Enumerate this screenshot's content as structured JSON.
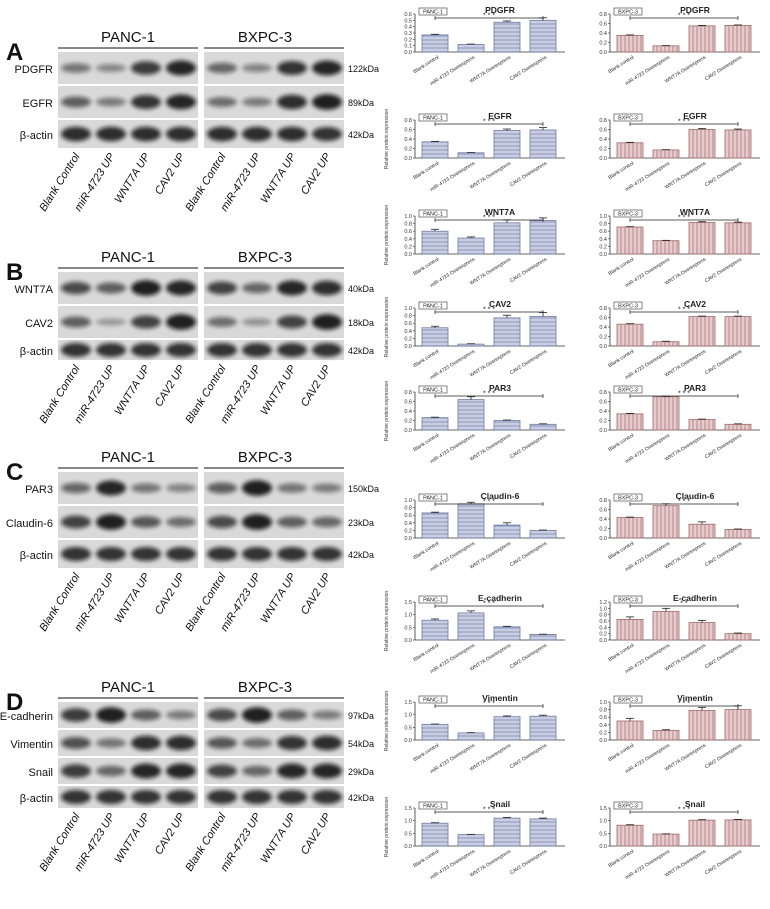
{
  "figure": {
    "panels": [
      {
        "letter": "A",
        "cell_lines": [
          "PANC-1",
          "BXPC-3"
        ],
        "rows": [
          {
            "protein": "PDGFR",
            "size": "122kDa",
            "panc1": [
              0.35,
              0.22,
              0.75,
              0.9
            ],
            "bxpc3": [
              0.45,
              0.25,
              0.8,
              0.9
            ]
          },
          {
            "protein": "EGFR",
            "size": "89kDa",
            "panc1": [
              0.5,
              0.3,
              0.8,
              0.9
            ],
            "bxpc3": [
              0.4,
              0.3,
              0.85,
              0.95
            ]
          },
          {
            "protein": "β-actin",
            "size": "42kDa",
            "panc1": [
              0.85,
              0.85,
              0.85,
              0.85
            ],
            "bxpc3": [
              0.85,
              0.85,
              0.85,
              0.8
            ]
          }
        ],
        "lanes": [
          "Blank Control",
          "miR-4723 UP",
          "WNT7A UP",
          "CAV2 UP"
        ]
      },
      {
        "letter": "B",
        "cell_lines": [
          "PANC-1",
          "BXPC-3"
        ],
        "rows": [
          {
            "protein": "WNT7A",
            "size": "40kDa",
            "panc1": [
              0.65,
              0.5,
              0.95,
              0.9
            ],
            "bxpc3": [
              0.7,
              0.45,
              0.9,
              0.85
            ]
          },
          {
            "protein": "CAV2",
            "size": "18kDa",
            "panc1": [
              0.5,
              0.1,
              0.7,
              0.95
            ],
            "bxpc3": [
              0.4,
              0.15,
              0.7,
              0.95
            ]
          },
          {
            "protein": "β-actin",
            "size": "42kDa",
            "panc1": [
              0.8,
              0.8,
              0.8,
              0.8
            ],
            "bxpc3": [
              0.8,
              0.8,
              0.8,
              0.8
            ]
          }
        ],
        "lanes": [
          "Blank Control",
          "miR-4723 UP",
          "WNT7A UP",
          "CAV2 UP"
        ]
      },
      {
        "letter": "C",
        "cell_lines": [
          "PANC-1",
          "BXPC-3"
        ],
        "rows": [
          {
            "protein": "PAR3",
            "size": "150kDa",
            "panc1": [
              0.45,
              0.9,
              0.35,
              0.25
            ],
            "bxpc3": [
              0.5,
              0.95,
              0.35,
              0.3
            ]
          },
          {
            "protein": "Claudin-6",
            "size": "23kDa",
            "panc1": [
              0.7,
              0.95,
              0.55,
              0.4
            ],
            "bxpc3": [
              0.65,
              0.95,
              0.5,
              0.45
            ]
          },
          {
            "protein": "β-actin",
            "size": "42kDa",
            "panc1": [
              0.8,
              0.8,
              0.8,
              0.8
            ],
            "bxpc3": [
              0.8,
              0.8,
              0.8,
              0.8
            ]
          }
        ],
        "lanes": [
          "Blank Control",
          "miR-4723 UP",
          "WNT7A UP",
          "CAV2 UP"
        ]
      },
      {
        "letter": "D",
        "cell_lines": [
          "PANC-1",
          "BXPC-3"
        ],
        "rows": [
          {
            "protein": "E-cadherin",
            "size": "97kDa",
            "panc1": [
              0.75,
              0.95,
              0.5,
              0.3
            ],
            "bxpc3": [
              0.65,
              0.95,
              0.5,
              0.3
            ]
          },
          {
            "protein": "Vimentin",
            "size": "54kDa",
            "panc1": [
              0.6,
              0.35,
              0.85,
              0.85
            ],
            "bxpc3": [
              0.55,
              0.4,
              0.8,
              0.85
            ]
          },
          {
            "protein": "Snail",
            "size": "29kDa",
            "panc1": [
              0.75,
              0.45,
              0.9,
              0.9
            ],
            "bxpc3": [
              0.7,
              0.45,
              0.9,
              0.9
            ]
          },
          {
            "protein": "β-actin",
            "size": "42kDa",
            "panc1": [
              0.8,
              0.8,
              0.8,
              0.8
            ],
            "bxpc3": [
              0.8,
              0.8,
              0.8,
              0.8
            ]
          }
        ],
        "lanes": [
          "Blank Control",
          "miR-4723 UP",
          "WNT7A UP",
          "CAV2 UP"
        ]
      }
    ],
    "colors": {
      "panc1_stroke": "#6f7ca6",
      "panc1_fill": "#c9cfe3",
      "bxpc3_stroke": "#a06a6a",
      "bxpc3_fill": "#e6cccc",
      "blot_bg": "#d9d9d9",
      "band": "#111111"
    }
  },
  "chart_data": [
    {
      "type": "bar",
      "title": "PDGFR",
      "tag": "PANC-1",
      "series_color": "blue",
      "sig": "* * *",
      "categories": [
        "Blank control",
        "miR-4723 Overexpress",
        "WNT7A Overexpress",
        "CAV2 Overexpress"
      ],
      "values": [
        0.27,
        0.12,
        0.47,
        0.5
      ],
      "errors": [
        0.01,
        0.005,
        0.02,
        0.04
      ],
      "ylim": [
        0,
        0.6
      ],
      "yticks": [
        "0.0",
        "0.1",
        "0.2",
        "0.3",
        "0.4",
        "0.5",
        "0.6"
      ],
      "ylabel": ""
    },
    {
      "type": "bar",
      "title": "PDGFR",
      "tag": "BXPC-3",
      "series_color": "red",
      "sig": "* * *",
      "categories": [
        "Blank control",
        "miR-4723 Overexpress",
        "WNT7A Overexpress",
        "CAV2 Overexpress"
      ],
      "values": [
        0.35,
        0.13,
        0.55,
        0.56
      ],
      "errors": [
        0.01,
        0.005,
        0.01,
        0.01
      ],
      "ylim": [
        0,
        0.8
      ],
      "yticks": [
        "0.0",
        "0.2",
        "0.4",
        "0.6",
        "0.8"
      ],
      "ylabel": ""
    },
    {
      "type": "bar",
      "title": "EGFR",
      "tag": "PANC-1",
      "series_color": "blue",
      "sig": "* * *",
      "categories": [
        "Blank control",
        "miR-4723 Overexpress",
        "WNT7A Overexpress",
        "CAV2 Overexpress"
      ],
      "values": [
        0.34,
        0.11,
        0.58,
        0.59
      ],
      "errors": [
        0.01,
        0.005,
        0.03,
        0.05
      ],
      "ylim": [
        0,
        0.8
      ],
      "yticks": [
        "0.0",
        "0.2",
        "0.4",
        "0.6",
        "0.8"
      ],
      "ylabel": "Relative protein expression"
    },
    {
      "type": "bar",
      "title": "EGFR",
      "tag": "BXPC-3",
      "series_color": "red",
      "sig": "* * *",
      "categories": [
        "Blank control",
        "miR-4723 Overexpress",
        "WNT7A Overexpress",
        "CAV2 Overexpress"
      ],
      "values": [
        0.32,
        0.17,
        0.6,
        0.59
      ],
      "errors": [
        0.01,
        0.005,
        0.02,
        0.02
      ],
      "ylim": [
        0,
        0.8
      ],
      "yticks": [
        "0.0",
        "0.2",
        "0.4",
        "0.6",
        "0.8"
      ],
      "ylabel": ""
    },
    {
      "type": "bar",
      "title": "WNT7A",
      "tag": "PANC-1",
      "series_color": "blue",
      "sig": "* * *",
      "categories": [
        "Blank control",
        "miR-4723 Overexpress",
        "WNT7A Overexpress",
        "CAV2 Overexpress"
      ],
      "values": [
        0.6,
        0.42,
        0.82,
        0.88
      ],
      "errors": [
        0.05,
        0.03,
        0.08,
        0.07
      ],
      "ylim": [
        0,
        1.0
      ],
      "yticks": [
        "0.0",
        "0.2",
        "0.4",
        "0.6",
        "0.8",
        "1.0"
      ],
      "ylabel": "Relative protein expression"
    },
    {
      "type": "bar",
      "title": "WNT7A",
      "tag": "BXPC-3",
      "series_color": "red",
      "sig": "* * *",
      "categories": [
        "Blank control",
        "miR-4723 Overexpress",
        "WNT7A Overexpress",
        "CAV2 Overexpress"
      ],
      "values": [
        0.71,
        0.35,
        0.83,
        0.82
      ],
      "errors": [
        0.01,
        0.01,
        0.02,
        0.02
      ],
      "ylim": [
        0,
        1.0
      ],
      "yticks": [
        "0.0",
        "0.2",
        "0.4",
        "0.6",
        "0.8",
        "1.0"
      ],
      "ylabel": ""
    },
    {
      "type": "bar",
      "title": "CAV2",
      "tag": "PANC-1",
      "series_color": "blue",
      "sig": "* * *",
      "categories": [
        "Blank control",
        "miR-4723 Overexpress",
        "WNT7A Overexpress",
        "CAV2 Overexpress"
      ],
      "values": [
        0.48,
        0.05,
        0.74,
        0.78
      ],
      "errors": [
        0.04,
        0.01,
        0.07,
        0.1
      ],
      "ylim": [
        0,
        1.0
      ],
      "yticks": [
        "0.0",
        "0.2",
        "0.4",
        "0.6",
        "0.8",
        "1.0"
      ],
      "ylabel": "Relative protein expression"
    },
    {
      "type": "bar",
      "title": "CAV2",
      "tag": "BXPC-3",
      "series_color": "red",
      "sig": "* * *",
      "categories": [
        "Blank control",
        "miR-4723 Overexpress",
        "WNT7A Overexpress",
        "CAV2 Overexpress"
      ],
      "values": [
        0.46,
        0.09,
        0.62,
        0.62
      ],
      "errors": [
        0.01,
        0.01,
        0.01,
        0.01
      ],
      "ylim": [
        0,
        0.8
      ],
      "yticks": [
        "0.0",
        "0.2",
        "0.4",
        "0.6",
        "0.8"
      ],
      "ylabel": ""
    },
    {
      "type": "bar",
      "title": "PAR3",
      "tag": "PANC-1",
      "series_color": "blue",
      "sig": "* * *",
      "categories": [
        "Blank control",
        "miR-4723 Overexpress",
        "WNT7A Overexpress",
        "CAV2 Overexpress"
      ],
      "values": [
        0.26,
        0.64,
        0.2,
        0.12
      ],
      "errors": [
        0.01,
        0.06,
        0.01,
        0.01
      ],
      "ylim": [
        0,
        0.8
      ],
      "yticks": [
        "0.0",
        "0.2",
        "0.4",
        "0.6",
        "0.8"
      ],
      "ylabel": "Relative protein expression"
    },
    {
      "type": "bar",
      "title": "PAR3",
      "tag": "BXPC-3",
      "series_color": "red",
      "sig": "* * *",
      "categories": [
        "Blank control",
        "miR-4723 Overexpress",
        "WNT7A Overexpress",
        "CAV2 Overexpress"
      ],
      "values": [
        0.34,
        0.7,
        0.22,
        0.12
      ],
      "errors": [
        0.01,
        0.01,
        0.01,
        0.01
      ],
      "ylim": [
        0,
        0.8
      ],
      "yticks": [
        "0.0",
        "0.2",
        "0.4",
        "0.6",
        "0.8"
      ],
      "ylabel": ""
    },
    {
      "type": "bar",
      "title": "Claudin-6",
      "tag": "PANC-1",
      "series_color": "blue",
      "sig": "* * *",
      "categories": [
        "Blank control",
        "miR-4723 Overexpress",
        "WNT7A Overexpress",
        "CAV2 Overexpress"
      ],
      "values": [
        0.66,
        0.9,
        0.34,
        0.2
      ],
      "errors": [
        0.02,
        0.04,
        0.06,
        0.01
      ],
      "ylim": [
        0,
        1.0
      ],
      "yticks": [
        "0.0",
        "0.2",
        "0.4",
        "0.6",
        "0.8",
        "1.0"
      ],
      "ylabel": ""
    },
    {
      "type": "bar",
      "title": "Claudin-6",
      "tag": "BXPC-3",
      "series_color": "red",
      "sig": "* * *",
      "categories": [
        "Blank control",
        "miR-4723 Overexpress",
        "WNT7A Overexpress",
        "CAV2 Overexpress"
      ],
      "values": [
        0.43,
        0.68,
        0.29,
        0.18
      ],
      "errors": [
        0.01,
        0.04,
        0.05,
        0.01
      ],
      "ylim": [
        0,
        0.8
      ],
      "yticks": [
        "0.0",
        "0.2",
        "0.4",
        "0.6",
        "0.8"
      ],
      "ylabel": ""
    },
    {
      "type": "bar",
      "title": "E-cadherin",
      "tag": "PANC-1",
      "series_color": "blue",
      "sig": "* * *",
      "categories": [
        "Blank control",
        "miR-4723 Overexpress",
        "WNT7A Overexpress",
        "CAV2 Overexpress"
      ],
      "values": [
        0.78,
        1.07,
        0.52,
        0.22
      ],
      "errors": [
        0.05,
        0.08,
        0.02,
        0.01
      ],
      "ylim": [
        0,
        1.5
      ],
      "yticks": [
        "0.0",
        "0.5",
        "1.0",
        "1.5"
      ],
      "ylabel": "Relative protein expression"
    },
    {
      "type": "bar",
      "title": "E-cadherin",
      "tag": "BXPC-3",
      "series_color": "red",
      "sig": "* *",
      "categories": [
        "Blank control",
        "miR-4723 Overexpress",
        "WNT7A Overexpress",
        "CAV2 Overexpress"
      ],
      "values": [
        0.65,
        0.9,
        0.55,
        0.2
      ],
      "errors": [
        0.08,
        0.1,
        0.07,
        0.02
      ],
      "ylim": [
        0,
        1.2
      ],
      "yticks": [
        "0.0",
        "0.2",
        "0.4",
        "0.6",
        "0.8",
        "1.0",
        "1.2"
      ],
      "ylabel": ""
    },
    {
      "type": "bar",
      "title": "Vimentin",
      "tag": "PANC-1",
      "series_color": "blue",
      "sig": "* * *",
      "categories": [
        "Blank control",
        "miR-4723 Overexpress",
        "WNT7A Overexpress",
        "CAV2 Overexpress"
      ],
      "values": [
        0.62,
        0.28,
        0.92,
        0.94
      ],
      "errors": [
        0.01,
        0.01,
        0.03,
        0.04
      ],
      "ylim": [
        0,
        1.5
      ],
      "yticks": [
        "0.0",
        "0.5",
        "1.0",
        "1.5"
      ],
      "ylabel": "Relative protein expression"
    },
    {
      "type": "bar",
      "title": "Vimentin",
      "tag": "BXPC-3",
      "series_color": "red",
      "sig": "* * *",
      "categories": [
        "Blank control",
        "miR-4723 Overexpress",
        "WNT7A Overexpress",
        "CAV2 Overexpress"
      ],
      "values": [
        0.5,
        0.25,
        0.78,
        0.8
      ],
      "errors": [
        0.07,
        0.02,
        0.08,
        0.1
      ],
      "ylim": [
        0,
        1.0
      ],
      "yticks": [
        "0.0",
        "0.2",
        "0.4",
        "0.6",
        "0.8",
        "1.0"
      ],
      "ylabel": ""
    },
    {
      "type": "bar",
      "title": "Snail",
      "tag": "PANC-1",
      "series_color": "blue",
      "sig": "* * *",
      "categories": [
        "Blank control",
        "miR-4723 Overexpress",
        "WNT7A Overexpress",
        "CAV2 Overexpress"
      ],
      "values": [
        0.9,
        0.45,
        1.1,
        1.07
      ],
      "errors": [
        0.02,
        0.01,
        0.03,
        0.03
      ],
      "ylim": [
        0,
        1.5
      ],
      "yticks": [
        "0.0",
        "0.5",
        "1.0",
        "1.5"
      ],
      "ylabel": "Relative protein expression"
    },
    {
      "type": "bar",
      "title": "Snail",
      "tag": "BXPC-3",
      "series_color": "red",
      "sig": "* * *",
      "categories": [
        "Blank control",
        "miR-4723 Overexpress",
        "WNT7A Overexpress",
        "CAV2 Overexpress"
      ],
      "values": [
        0.82,
        0.47,
        1.02,
        1.03
      ],
      "errors": [
        0.02,
        0.01,
        0.02,
        0.02
      ],
      "ylim": [
        0,
        1.5
      ],
      "yticks": [
        "0.0",
        "0.5",
        "1.0",
        "1.5"
      ],
      "ylabel": ""
    }
  ]
}
